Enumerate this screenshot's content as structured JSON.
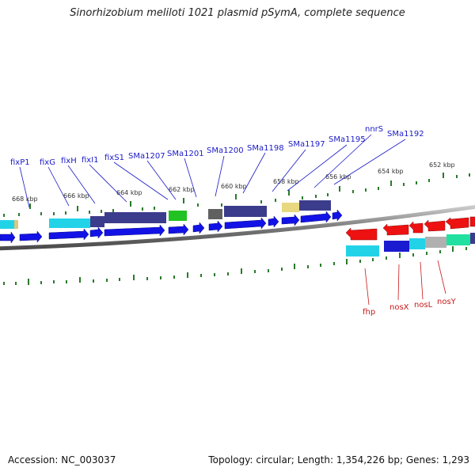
{
  "title": "Sinorhizobium meliloti 1021 plasmid pSymA, complete sequence",
  "footer": {
    "accession": "Accession: NC_003037",
    "summary": "Topology: circular; Length: 1,354,226 bp; Genes: 1,293"
  },
  "ruler_outer": [
    "668 kbp",
    "666 kbp",
    "664 kbp",
    "662 kbp",
    "660 kbp",
    "658 kbp",
    "656 kbp",
    "654 kbp",
    "652 kbp"
  ],
  "gene_labels_top": [
    "fixP1",
    "fixG",
    "fixH",
    "fixI1",
    "fixS1",
    "SMa1207",
    "SMa1201",
    "SMa1200",
    "SMa1198",
    "SMa1197",
    "SMa1195",
    "nnrS",
    "SMa1192"
  ],
  "gene_labels_bottom": [
    "fhp",
    "nosX",
    "nosL",
    "nosY"
  ],
  "colors": {
    "label_top": "#1a1ac8",
    "label_bottom": "#c81818",
    "tick": "#2a7a2a",
    "cds": "#1010e0",
    "rna": "#ee1111",
    "backbone": "#7a7a7a"
  }
}
